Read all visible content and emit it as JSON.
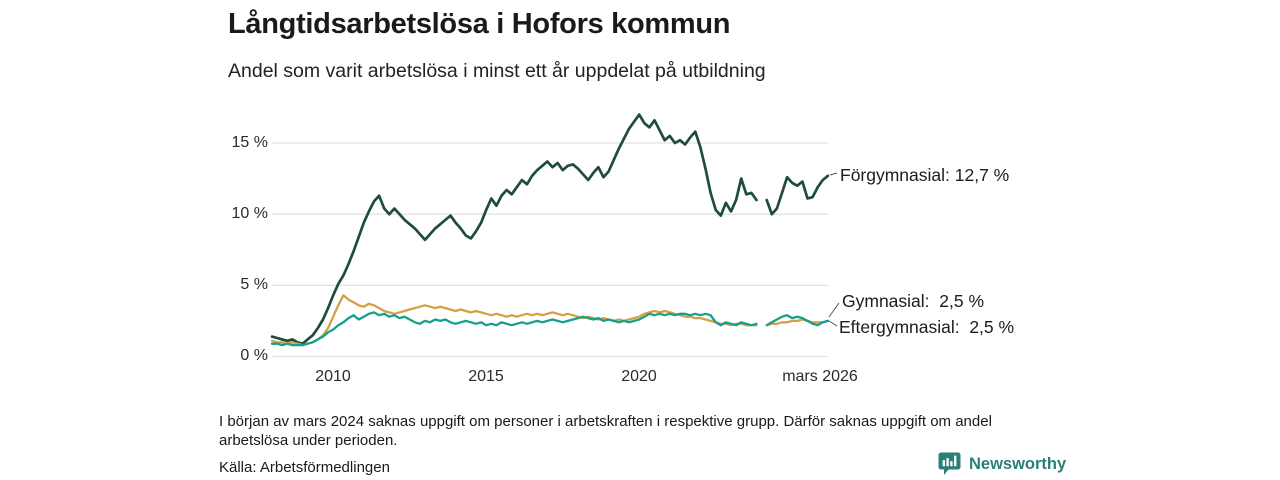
{
  "header": {
    "title": "Långtidsarbetslösa i Hofors kommun",
    "subtitle": "Andel som varit arbetslösa i minst ett år uppdelat på utbildning"
  },
  "chart_data": {
    "type": "line",
    "title": "Långtidsarbetslösa i Hofors kommun",
    "subtitle": "Andel som varit arbetslösa i minst ett år uppdelat på utbildning",
    "x_axis": {
      "unit": "year",
      "start": 2008.0,
      "step": 0.166667,
      "end": 2026.17,
      "tick_values": [
        2010,
        2015,
        2020,
        2026.17
      ],
      "tick_labels": [
        "2010",
        "2015",
        "2020",
        "mars 2026"
      ]
    },
    "y_axis": {
      "unit": "%",
      "min": 0,
      "max": 17.5,
      "tick_values": [
        0,
        5,
        10,
        15
      ],
      "tick_labels": [
        "0 %",
        "5 %",
        "10 %",
        "15 %"
      ],
      "grid": true
    },
    "data_gap": {
      "around": 2024.0,
      "reason_note_ref": "footer.note"
    },
    "series": [
      {
        "name": "Förgymnasial",
        "color": "#1e4b42",
        "last_value": 12.7,
        "end_label": "Förgymnasial: 12,7 %",
        "values": [
          1.4,
          1.3,
          1.2,
          1.1,
          1.2,
          1.0,
          0.9,
          1.2,
          1.5,
          2.0,
          2.6,
          3.4,
          4.3,
          5.1,
          5.7,
          6.5,
          7.4,
          8.4,
          9.4,
          10.2,
          10.9,
          11.3,
          10.4,
          10.0,
          10.4,
          10.0,
          9.6,
          9.3,
          9.0,
          8.6,
          8.2,
          8.6,
          9.0,
          9.3,
          9.6,
          9.9,
          9.4,
          9.0,
          8.5,
          8.3,
          8.8,
          9.4,
          10.3,
          11.1,
          10.6,
          11.3,
          11.7,
          11.4,
          11.9,
          12.4,
          12.1,
          12.7,
          13.1,
          13.4,
          13.7,
          13.3,
          13.6,
          13.1,
          13.4,
          13.5,
          13.2,
          12.8,
          12.4,
          12.9,
          13.3,
          12.6,
          13.0,
          13.8,
          14.6,
          15.3,
          16.0,
          16.5,
          17.0,
          16.4,
          16.1,
          16.6,
          15.9,
          15.2,
          15.5,
          15.0,
          15.2,
          14.9,
          15.4,
          15.8,
          14.7,
          13.2,
          11.5,
          10.3,
          9.9,
          10.8,
          10.2,
          11.0,
          12.5,
          11.4,
          11.5,
          11.0,
          null,
          11.0,
          10.0,
          10.4,
          11.5,
          12.6,
          12.2,
          12.0,
          12.3,
          11.1,
          11.2,
          11.9,
          12.4,
          12.7
        ]
      },
      {
        "name": "Gymnasial",
        "color": "#d5a043",
        "last_value": 2.5,
        "end_label": "Gymnasial:  2,5 %",
        "values": [
          1.1,
          1.0,
          1.0,
          0.9,
          1.0,
          0.9,
          0.8,
          0.9,
          1.0,
          1.2,
          1.5,
          2.0,
          2.8,
          3.6,
          4.3,
          4.0,
          3.8,
          3.6,
          3.5,
          3.7,
          3.6,
          3.4,
          3.2,
          3.1,
          3.0,
          3.1,
          3.2,
          3.3,
          3.4,
          3.5,
          3.6,
          3.5,
          3.4,
          3.5,
          3.4,
          3.3,
          3.2,
          3.3,
          3.2,
          3.1,
          3.2,
          3.1,
          3.0,
          2.9,
          3.0,
          2.9,
          2.8,
          2.9,
          2.8,
          2.9,
          3.0,
          2.9,
          3.0,
          2.9,
          3.0,
          3.1,
          3.0,
          2.9,
          3.0,
          2.9,
          2.8,
          2.7,
          2.8,
          2.7,
          2.6,
          2.7,
          2.6,
          2.5,
          2.6,
          2.5,
          2.6,
          2.7,
          2.8,
          3.0,
          3.1,
          3.2,
          3.1,
          3.2,
          3.1,
          3.0,
          2.9,
          2.8,
          2.8,
          2.7,
          2.7,
          2.6,
          2.5,
          2.4,
          2.3,
          2.3,
          2.2,
          2.3,
          2.3,
          2.2,
          2.2,
          2.2,
          null,
          2.2,
          2.3,
          2.3,
          2.4,
          2.4,
          2.5,
          2.5,
          2.6,
          2.5,
          2.4,
          2.4,
          2.4,
          2.5
        ]
      },
      {
        "name": "Eftergymnasial",
        "color": "#159f8c",
        "last_value": 2.5,
        "end_label": "Eftergymnasial:  2,5 %",
        "values": [
          0.9,
          0.9,
          0.8,
          0.9,
          0.8,
          0.8,
          0.8,
          0.9,
          1.0,
          1.2,
          1.4,
          1.7,
          1.9,
          2.2,
          2.4,
          2.7,
          2.9,
          2.6,
          2.8,
          3.0,
          3.1,
          2.9,
          3.0,
          2.8,
          2.9,
          2.7,
          2.8,
          2.6,
          2.4,
          2.3,
          2.5,
          2.4,
          2.6,
          2.5,
          2.6,
          2.4,
          2.3,
          2.4,
          2.5,
          2.4,
          2.3,
          2.4,
          2.2,
          2.3,
          2.2,
          2.4,
          2.3,
          2.2,
          2.3,
          2.4,
          2.3,
          2.4,
          2.5,
          2.4,
          2.5,
          2.6,
          2.5,
          2.4,
          2.5,
          2.6,
          2.7,
          2.8,
          2.7,
          2.6,
          2.7,
          2.5,
          2.6,
          2.5,
          2.4,
          2.5,
          2.4,
          2.5,
          2.6,
          2.8,
          3.0,
          2.9,
          3.0,
          2.9,
          3.0,
          2.9,
          3.0,
          3.0,
          2.9,
          3.0,
          2.9,
          3.0,
          2.9,
          2.4,
          2.2,
          2.4,
          2.3,
          2.2,
          2.4,
          2.3,
          2.2,
          2.3,
          null,
          2.2,
          2.4,
          2.6,
          2.8,
          2.9,
          2.7,
          2.8,
          2.7,
          2.5,
          2.3,
          2.2,
          2.4,
          2.5
        ]
      }
    ],
    "grid_color": "#e2e2e2",
    "legend_position": "end-of-line-labels"
  },
  "footer": {
    "note": "I början av mars 2024 saknas uppgift om personer i arbetskraften i respektive grupp. Därför saknas uppgift om andel arbetslösa under perioden.",
    "source": "Källa: Arbetsförmedlingen",
    "brand": {
      "name": "Newsworthy",
      "color": "#2a7f78",
      "icon": "bar-chart-speech-bubble-icon"
    }
  }
}
